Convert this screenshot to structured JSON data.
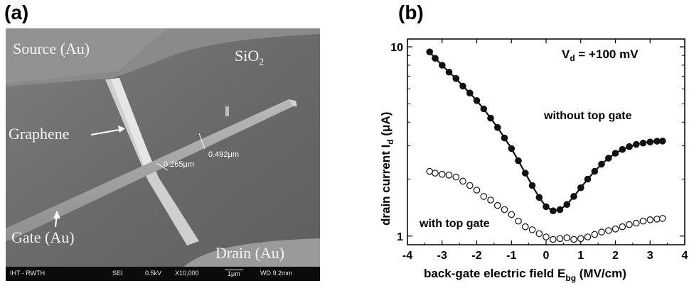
{
  "panels": {
    "a_label": "(a)",
    "b_label": "(b)"
  },
  "sem_image": {
    "labels": {
      "source": "Source (Au)",
      "sio2": "SiO",
      "sio2_sub": "2",
      "graphene": "Graphene",
      "gate": "Gate (Au)",
      "drain": "Drain (Au)",
      "dim_width": "0.265μm",
      "dim_length": "0.492μm"
    },
    "info_bar": {
      "lab": "IHT - RWTH",
      "mode": "SEI",
      "voltage": "0.5kV",
      "magnification": "X10,000",
      "scale": "1μm",
      "wd": "WD 9.2mm"
    }
  },
  "chart_data": {
    "type": "scatter",
    "title": "",
    "annotation": "V",
    "annotation_sub": "d",
    "annotation_tail": " = +100 mV",
    "xlabel": "back-gate electric field E",
    "xlabel_sub": "bg",
    "xlabel_tail": " (MV/cm)",
    "ylabel": "drain current I",
    "ylabel_sub": "d",
    "ylabel_tail": " (μA)",
    "xlim": [
      -4,
      4
    ],
    "ylim": [
      0.9,
      11
    ],
    "yscale": "log",
    "xticks": [
      "-4",
      "-3",
      "-2",
      "-1",
      "0",
      "1",
      "2",
      "3",
      "4"
    ],
    "yticks": [
      "1",
      "10"
    ],
    "series": [
      {
        "name": "without top gate",
        "marker": "filled",
        "color": "#111111",
        "x": [
          -3.36,
          -3.2,
          -3.0,
          -2.8,
          -2.6,
          -2.4,
          -2.2,
          -2.0,
          -1.8,
          -1.6,
          -1.4,
          -1.2,
          -1.0,
          -0.8,
          -0.6,
          -0.4,
          -0.2,
          0.0,
          0.2,
          0.4,
          0.6,
          0.8,
          1.0,
          1.2,
          1.4,
          1.6,
          1.8,
          2.0,
          2.2,
          2.4,
          2.6,
          2.8,
          3.0,
          3.2,
          3.36
        ],
        "y": [
          9.4,
          8.7,
          8.0,
          7.35,
          6.8,
          6.2,
          5.7,
          5.2,
          4.7,
          4.2,
          3.75,
          3.3,
          2.9,
          2.5,
          2.15,
          1.85,
          1.6,
          1.43,
          1.36,
          1.38,
          1.47,
          1.62,
          1.8,
          2.0,
          2.2,
          2.4,
          2.58,
          2.74,
          2.87,
          2.97,
          3.05,
          3.1,
          3.14,
          3.17,
          3.18
        ]
      },
      {
        "name": "with top gate",
        "marker": "open",
        "color": "#111111",
        "x": [
          -3.36,
          -3.2,
          -3.0,
          -2.8,
          -2.6,
          -2.4,
          -2.2,
          -2.0,
          -1.8,
          -1.6,
          -1.4,
          -1.2,
          -1.0,
          -0.8,
          -0.6,
          -0.4,
          -0.2,
          0.0,
          0.2,
          0.4,
          0.6,
          0.8,
          1.0,
          1.2,
          1.4,
          1.6,
          1.8,
          2.0,
          2.2,
          2.4,
          2.6,
          2.8,
          3.0,
          3.2,
          3.36
        ],
        "y": [
          2.2,
          2.15,
          2.12,
          2.1,
          2.05,
          1.95,
          1.85,
          1.75,
          1.62,
          1.55,
          1.45,
          1.38,
          1.3,
          1.2,
          1.12,
          1.08,
          1.03,
          0.99,
          0.96,
          0.97,
          0.98,
          0.96,
          0.97,
          0.99,
          1.02,
          1.05,
          1.07,
          1.09,
          1.12,
          1.15,
          1.17,
          1.2,
          1.22,
          1.23,
          1.24
        ]
      }
    ]
  }
}
